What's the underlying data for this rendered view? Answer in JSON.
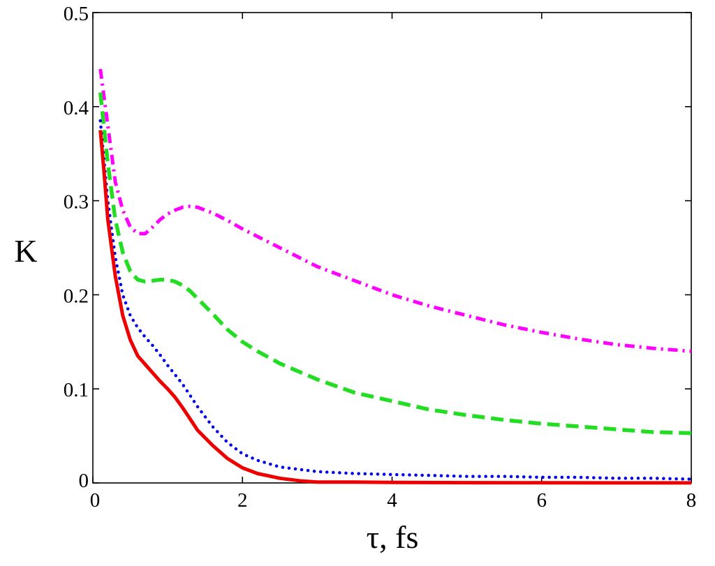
{
  "chart_data": {
    "type": "line",
    "title": "",
    "xlabel": "τ, fs",
    "ylabel": "K",
    "xlim": [
      0,
      8
    ],
    "ylim": [
      0,
      0.5
    ],
    "x_ticks": [
      "0",
      "2",
      "4",
      "6",
      "8"
    ],
    "y_ticks": [
      "0",
      "0.1",
      "0.2",
      "0.3",
      "0.4",
      "0.5"
    ],
    "grid": false,
    "legend": "none",
    "series": [
      {
        "color": "#ff00ff",
        "style": "dash-dot",
        "x": [
          0.1,
          0.2,
          0.3,
          0.4,
          0.5,
          0.6,
          0.7,
          0.8,
          0.9,
          1.0,
          1.1,
          1.2,
          1.3,
          1.4,
          1.5,
          1.6,
          1.8,
          2.0,
          2.2,
          2.5,
          3.0,
          3.5,
          4.0,
          4.5,
          5.0,
          5.5,
          6.0,
          6.5,
          7.0,
          7.5,
          8.0
        ],
        "y": [
          0.44,
          0.38,
          0.32,
          0.29,
          0.272,
          0.265,
          0.265,
          0.272,
          0.28,
          0.286,
          0.29,
          0.293,
          0.294,
          0.293,
          0.29,
          0.287,
          0.279,
          0.27,
          0.262,
          0.25,
          0.23,
          0.215,
          0.2,
          0.188,
          0.178,
          0.168,
          0.16,
          0.153,
          0.147,
          0.143,
          0.14
        ]
      },
      {
        "color": "#22dd22",
        "style": "dashed",
        "x": [
          0.1,
          0.2,
          0.3,
          0.4,
          0.5,
          0.6,
          0.7,
          0.8,
          0.9,
          1.0,
          1.1,
          1.2,
          1.3,
          1.4,
          1.6,
          1.8,
          2.0,
          2.2,
          2.5,
          3.0,
          3.5,
          4.0,
          4.5,
          5.0,
          5.5,
          6.0,
          6.5,
          7.0,
          7.5,
          8.0
        ],
        "y": [
          0.415,
          0.34,
          0.28,
          0.245,
          0.225,
          0.216,
          0.214,
          0.215,
          0.216,
          0.216,
          0.214,
          0.21,
          0.204,
          0.196,
          0.18,
          0.163,
          0.15,
          0.14,
          0.127,
          0.11,
          0.096,
          0.087,
          0.078,
          0.072,
          0.067,
          0.063,
          0.06,
          0.057,
          0.054,
          0.053
        ]
      },
      {
        "color": "#0000ee",
        "style": "dotted",
        "x": [
          0.1,
          0.2,
          0.3,
          0.4,
          0.5,
          0.6,
          0.7,
          0.8,
          0.9,
          1.0,
          1.1,
          1.2,
          1.3,
          1.4,
          1.6,
          1.8,
          2.0,
          2.2,
          2.5,
          3.0,
          3.5,
          4.0,
          4.5,
          5.0,
          5.5,
          6.0,
          6.5,
          7.0,
          7.5,
          8.0
        ],
        "y": [
          0.385,
          0.3,
          0.24,
          0.2,
          0.178,
          0.165,
          0.155,
          0.146,
          0.136,
          0.125,
          0.115,
          0.105,
          0.093,
          0.081,
          0.06,
          0.043,
          0.031,
          0.024,
          0.017,
          0.012,
          0.01,
          0.009,
          0.008,
          0.007,
          0.007,
          0.006,
          0.006,
          0.005,
          0.005,
          0.004
        ]
      },
      {
        "color": "#ee0000",
        "style": "solid",
        "x": [
          0.1,
          0.15,
          0.2,
          0.3,
          0.4,
          0.5,
          0.6,
          0.7,
          0.8,
          0.9,
          1.0,
          1.1,
          1.2,
          1.3,
          1.4,
          1.6,
          1.8,
          2.0,
          2.2,
          2.5,
          2.8,
          3.0,
          3.5,
          4.0,
          5.0,
          6.0,
          7.0,
          8.0
        ],
        "y": [
          0.375,
          0.33,
          0.28,
          0.22,
          0.178,
          0.152,
          0.135,
          0.126,
          0.117,
          0.108,
          0.1,
          0.091,
          0.08,
          0.068,
          0.056,
          0.04,
          0.026,
          0.016,
          0.01,
          0.005,
          0.002,
          0.001,
          0.001,
          0.0005,
          0.0003,
          0.0002,
          0.0001,
          0.0001
        ]
      }
    ]
  }
}
